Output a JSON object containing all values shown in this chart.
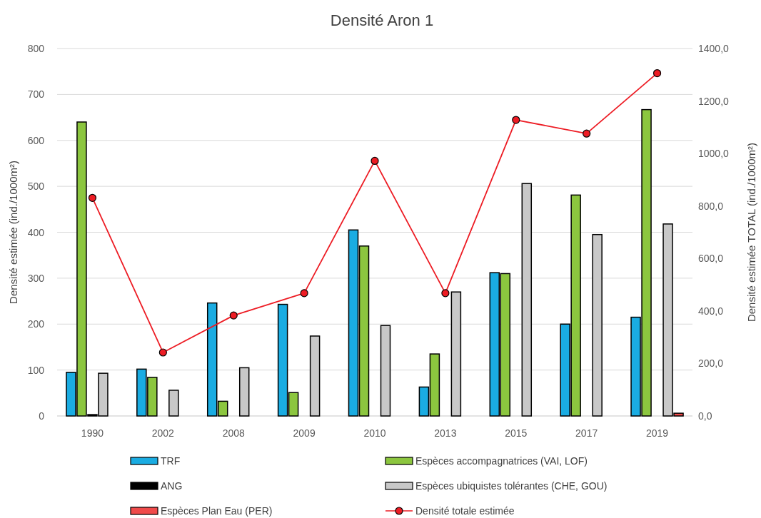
{
  "chart_data": {
    "type": "bar",
    "title": "Densité Aron 1",
    "ylabel": "Densité estimée (ind./1000m²)",
    "y2label": "Densité estimée TOTAL (ind./1000m²)",
    "categories": [
      "1990",
      "2002",
      "2008",
      "2009",
      "2010",
      "2013",
      "2015",
      "2017",
      "2019"
    ],
    "series": [
      {
        "name": "TRF",
        "color": "#1aace2",
        "values": [
          95,
          102,
          246,
          243,
          405,
          63,
          312,
          200,
          215
        ]
      },
      {
        "name": "Espèces accompagnatrices (VAI, LOF)",
        "color": "#8cc63f",
        "values": [
          640,
          84,
          32,
          51,
          370,
          135,
          310,
          481,
          667
        ]
      },
      {
        "name": "ANG",
        "color": "#000000",
        "values": [
          3,
          null,
          null,
          null,
          null,
          null,
          null,
          null,
          null
        ]
      },
      {
        "name": "Espèces ubiquistes tolérantes (CHE, GOU)",
        "color": "#c8c8c8",
        "values": [
          93,
          56,
          105,
          174,
          197,
          270,
          506,
          395,
          418
        ]
      },
      {
        "name": "Espèces Plan Eau (PER)",
        "color": "#f04a4a",
        "values": [
          null,
          null,
          null,
          null,
          null,
          null,
          null,
          null,
          6
        ]
      },
      {
        "name": "Densité totale estimée",
        "type": "line",
        "axis": "y2",
        "color": "#ed1c24",
        "marker": "circle",
        "values": [
          831,
          242,
          383,
          468,
          972,
          468,
          1128,
          1076,
          1306
        ]
      }
    ],
    "ylim": [
      0,
      800
    ],
    "yticks": [
      0,
      100,
      200,
      300,
      400,
      500,
      600,
      700,
      800
    ],
    "y2lim": [
      0,
      1400
    ],
    "y2ticks": [
      {
        "value": 0,
        "label": "0,0"
      },
      {
        "value": 200,
        "label": "200,0"
      },
      {
        "value": 400,
        "label": "400,0"
      },
      {
        "value": 600,
        "label": "600,0"
      },
      {
        "value": 800,
        "label": "800,0"
      },
      {
        "value": 1000,
        "label": "1000,0"
      },
      {
        "value": 1200,
        "label": "1200,0"
      },
      {
        "value": 1400,
        "label": "1400,0"
      }
    ],
    "grid": "y",
    "legend": "bottom"
  }
}
